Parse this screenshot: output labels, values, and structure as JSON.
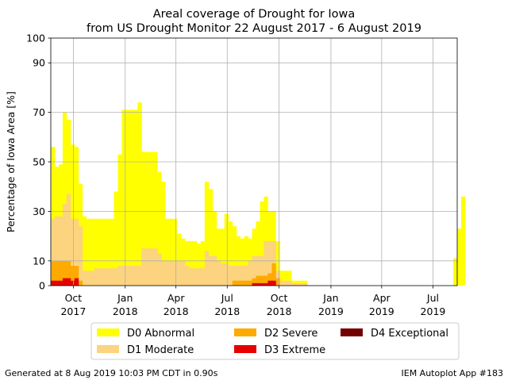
{
  "chart_data": {
    "type": "area",
    "title": "Areal coverage of Drought for Iowa",
    "subtitle": "from US Drought Monitor 22 August 2017 - 6 August 2019",
    "ylabel": "Percentage of Iowa Area [%]",
    "xlabel": "",
    "ylim": [
      0,
      100
    ],
    "xlim": [
      "2017-08-22",
      "2019-08-13"
    ],
    "yticks": [
      0,
      10,
      30,
      50,
      70,
      90,
      100
    ],
    "xticks": [
      {
        "date": "2017-10-01",
        "label": "Oct",
        "label2": "2017"
      },
      {
        "date": "2018-01-01",
        "label": "Jan",
        "label2": "2018"
      },
      {
        "date": "2018-04-01",
        "label": "Apr",
        "label2": "2018"
      },
      {
        "date": "2018-07-01",
        "label": "Jul",
        "label2": "2018"
      },
      {
        "date": "2018-10-01",
        "label": "Oct",
        "label2": "2018"
      },
      {
        "date": "2019-01-01",
        "label": "Jan",
        "label2": "2019"
      },
      {
        "date": "2019-04-01",
        "label": "Apr",
        "label2": "2019"
      },
      {
        "date": "2019-07-01",
        "label": "Jul",
        "label2": "2019"
      }
    ],
    "grid": true,
    "legend_position": "bottom",
    "series": [
      {
        "name": "D0 Abnormal",
        "color": "#ffff00",
        "values": [
          56,
          48,
          49,
          70,
          67,
          57,
          56,
          41,
          28,
          27,
          27,
          27,
          27,
          27,
          27,
          27,
          38,
          53,
          71,
          71,
          71,
          71,
          74,
          54,
          54,
          54,
          54,
          46,
          42,
          27,
          27,
          27,
          21,
          19,
          18,
          18,
          18,
          17,
          18,
          42,
          39,
          30,
          23,
          23,
          29,
          26,
          24,
          20,
          19,
          20,
          19,
          23,
          26,
          34,
          36,
          30,
          30,
          18,
          6,
          6,
          6,
          2,
          2,
          2,
          2,
          0,
          0,
          0,
          0,
          0,
          0,
          0,
          0,
          0,
          0,
          0,
          0,
          0,
          0,
          0,
          0,
          0,
          0,
          0,
          0,
          0,
          0,
          0,
          0,
          0,
          0,
          0,
          0,
          0,
          0,
          0,
          0,
          0,
          0,
          0,
          0,
          0,
          11,
          23,
          36
        ]
      },
      {
        "name": "D1 Moderate",
        "color": "#fcd37f",
        "values": [
          27,
          28,
          28,
          33,
          37,
          27,
          27,
          24,
          6,
          6,
          6,
          7,
          7,
          7,
          7,
          7,
          7,
          8,
          8,
          8,
          8,
          8,
          8,
          15,
          15,
          15,
          15,
          13,
          10,
          10,
          10,
          10,
          10,
          10,
          8,
          7,
          7,
          7,
          7,
          14,
          12,
          12,
          10,
          9,
          9,
          8,
          8,
          8,
          8,
          8,
          10,
          12,
          12,
          12,
          18,
          18,
          18,
          6,
          2,
          2,
          2,
          1,
          1,
          1,
          1,
          0,
          0,
          0,
          0,
          0,
          0,
          0,
          0,
          0,
          0,
          0,
          0,
          0,
          0,
          0,
          0,
          0,
          0,
          0,
          0,
          0,
          0,
          0,
          0,
          0,
          0,
          0,
          0,
          0,
          0,
          0,
          0,
          0,
          0,
          0,
          0,
          0,
          0,
          0,
          0
        ]
      },
      {
        "name": "D2 Severe",
        "color": "#ffaa00",
        "values": [
          10,
          10,
          10,
          10,
          10,
          8,
          8,
          2,
          0,
          0,
          0,
          0,
          0,
          0,
          0,
          0,
          0,
          0,
          0,
          0,
          0,
          0,
          0,
          0,
          0,
          0,
          0,
          0,
          0,
          0,
          0,
          0,
          0,
          0,
          0,
          0,
          0,
          0,
          0,
          0,
          0,
          0,
          0,
          0,
          0,
          0,
          2,
          2,
          2,
          2,
          2,
          3,
          4,
          4,
          4,
          5,
          9,
          3,
          0,
          0,
          0,
          0,
          0,
          0,
          0,
          0,
          0,
          0,
          0,
          0,
          0,
          0,
          0,
          0,
          0,
          0,
          0,
          0,
          0,
          0,
          0,
          0,
          0,
          0,
          0,
          0,
          0,
          0,
          0,
          0,
          0,
          0,
          0,
          0,
          0,
          0,
          0,
          0,
          0,
          0,
          0,
          0,
          0,
          0,
          0
        ]
      },
      {
        "name": "D3 Extreme",
        "color": "#e60000",
        "values": [
          2,
          2,
          2,
          3,
          3,
          2,
          3,
          0,
          0,
          0,
          0,
          0,
          0,
          0,
          0,
          0,
          0,
          0,
          0,
          0,
          0,
          0,
          0,
          0,
          0,
          0,
          0,
          0,
          0,
          0,
          0,
          0,
          0,
          0,
          0,
          0,
          0,
          0,
          0,
          0,
          0,
          0,
          0,
          0,
          0,
          0,
          0,
          0,
          0,
          0,
          0,
          1,
          1,
          1,
          1,
          2,
          2,
          0,
          0,
          0,
          0,
          0,
          0,
          0,
          0,
          0,
          0,
          0,
          0,
          0,
          0,
          0,
          0,
          0,
          0,
          0,
          0,
          0,
          0,
          0,
          0,
          0,
          0,
          0,
          0,
          0,
          0,
          0,
          0,
          0,
          0,
          0,
          0,
          0,
          0,
          0,
          0,
          0,
          0,
          0,
          0,
          0,
          0,
          0,
          0
        ]
      },
      {
        "name": "D4 Exceptional",
        "color": "#730000",
        "values": [
          0,
          0,
          0,
          0,
          0,
          0,
          0,
          0,
          0,
          0,
          0,
          0,
          0,
          0,
          0,
          0,
          0,
          0,
          0,
          0,
          0,
          0,
          0,
          0,
          0,
          0,
          0,
          0,
          0,
          0,
          0,
          0,
          0,
          0,
          0,
          0,
          0,
          0,
          0,
          0,
          0,
          0,
          0,
          0,
          0,
          0,
          0,
          0,
          0,
          0,
          0,
          0,
          0,
          0,
          0,
          0,
          0,
          0,
          0,
          0,
          0,
          0,
          0,
          0,
          0,
          0,
          0,
          0,
          0,
          0,
          0,
          0,
          0,
          0,
          0,
          0,
          0,
          0,
          0,
          0,
          0,
          0,
          0,
          0,
          0,
          0,
          0,
          0,
          0,
          0,
          0,
          0,
          0,
          0,
          0,
          0,
          0,
          0,
          0,
          0,
          0,
          0,
          0,
          0,
          0
        ]
      }
    ]
  },
  "footer": {
    "left": "Generated at 8 Aug 2019 10:03 PM CDT in 0.90s",
    "right": "IEM Autoplot App #183"
  }
}
